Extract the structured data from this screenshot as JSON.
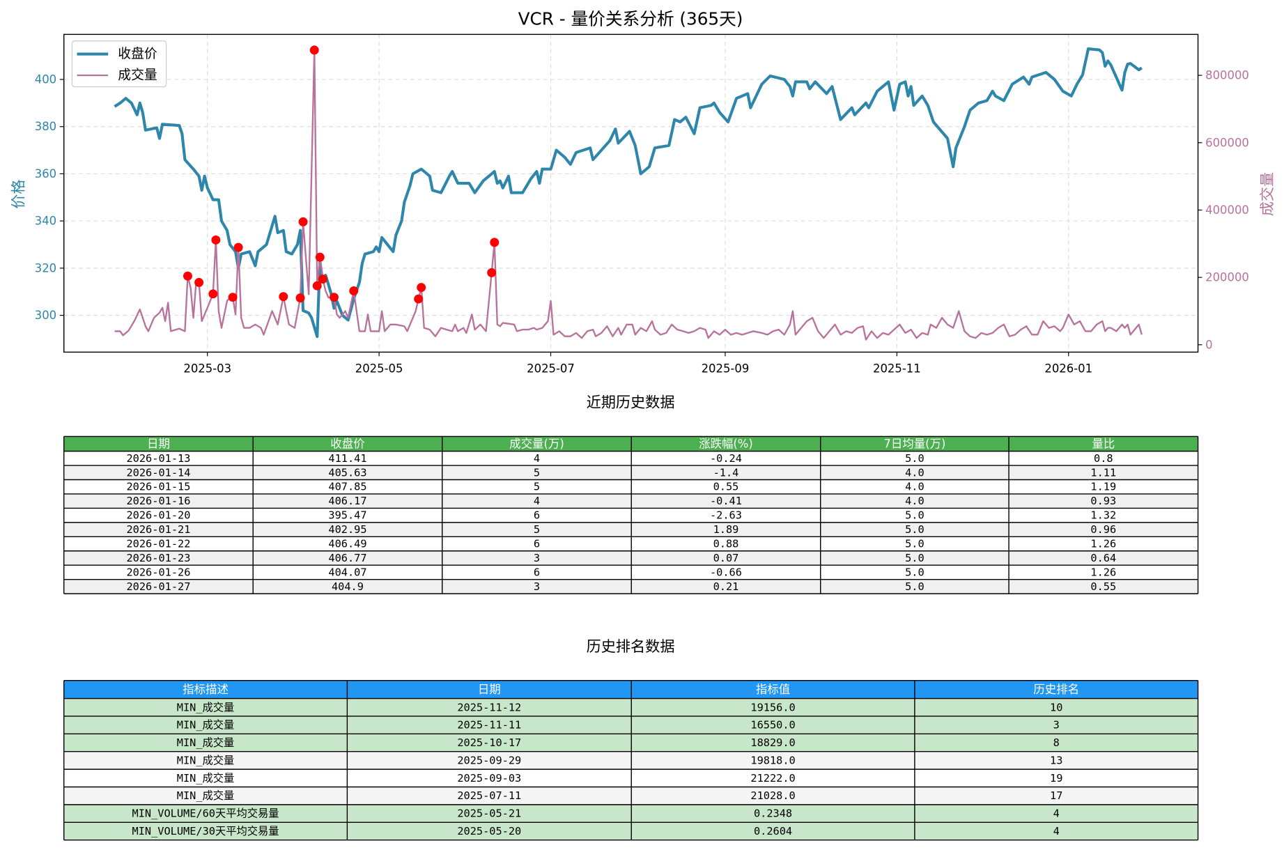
{
  "chart_data": {
    "type": "line",
    "title": "VCR - 量价关系分析 (365天)",
    "ylabel": "价格",
    "y2label": "成交量",
    "xlim": [
      -18,
      385
    ],
    "ylim": [
      284.4,
      419.1
    ],
    "y2lim": [
      -21900,
      921600
    ],
    "xticks": [
      {
        "value": 33,
        "label": "2025-03"
      },
      {
        "value": 94,
        "label": "2025-05"
      },
      {
        "value": 155,
        "label": "2025-07"
      },
      {
        "value": 217,
        "label": "2025-09"
      },
      {
        "value": 278,
        "label": "2025-11"
      },
      {
        "value": 339,
        "label": "2026-01"
      }
    ],
    "yticks": [
      300,
      320,
      340,
      360,
      380,
      400
    ],
    "y2ticks": [
      0,
      200000,
      400000,
      600000,
      800000
    ],
    "grid": true,
    "legend": "upper left",
    "series": [
      {
        "name": "收盘价",
        "color": "#2e86ab",
        "x": [
          0,
          2,
          4,
          6,
          8,
          9,
          10,
          11,
          15,
          16,
          17,
          23,
          24,
          25,
          28,
          30,
          31,
          32,
          33,
          35,
          37,
          38,
          40,
          41,
          43,
          44,
          45,
          48,
          50,
          51,
          54,
          56,
          57,
          58,
          60,
          61,
          63,
          65,
          66,
          67,
          69,
          70,
          72,
          73,
          74,
          75,
          76,
          77,
          78,
          79,
          81,
          83,
          85,
          87,
          88,
          89,
          92,
          93,
          94,
          95,
          97,
          99,
          100,
          102,
          103,
          105,
          106,
          109,
          112,
          113,
          116,
          119,
          120,
          122,
          126,
          128,
          131,
          135,
          136,
          137,
          138,
          140,
          141,
          145,
          148,
          150,
          151,
          152,
          155,
          157,
          160,
          162,
          164,
          169,
          170,
          173,
          176,
          178,
          179,
          183,
          185,
          187,
          190,
          192,
          197,
          199,
          201,
          203,
          206,
          208,
          212,
          213,
          215,
          218,
          221,
          225,
          226,
          230,
          233,
          238,
          240,
          241,
          242,
          246,
          247,
          249,
          253,
          255,
          258,
          262,
          263,
          267,
          268,
          271,
          275,
          277,
          279,
          281,
          282,
          283,
          284,
          287,
          289,
          291,
          296,
          298,
          299,
          302,
          304,
          307,
          310,
          312,
          313,
          316,
          319,
          323,
          325,
          326,
          331,
          334,
          337,
          340,
          342,
          344,
          346,
          350,
          351,
          352,
          353,
          354,
          358,
          359,
          360,
          361,
          364,
          365
        ],
        "values": [
          388.5,
          390,
          392,
          390,
          385,
          390,
          386,
          378.5,
          379.5,
          375,
          381,
          380.5,
          377,
          366,
          362,
          359,
          353,
          359,
          354,
          349,
          349,
          340,
          336,
          330,
          327,
          320,
          326,
          327,
          321,
          327,
          330,
          338,
          342,
          335,
          336,
          327,
          326,
          330,
          336,
          302,
          301,
          299,
          291,
          323,
          314,
          317,
          313,
          309,
          303,
          306,
          300,
          298,
          307,
          314,
          322,
          326,
          327,
          329,
          327,
          333,
          330,
          327,
          334,
          340,
          348,
          355,
          360,
          362,
          359,
          353,
          352,
          359,
          361,
          356,
          356,
          352,
          357,
          361,
          356,
          357,
          354,
          359,
          352,
          352,
          358,
          361,
          356,
          362,
          362,
          370,
          367,
          364,
          369,
          371,
          366,
          370,
          374,
          379,
          373,
          378,
          372,
          360,
          363,
          371,
          372,
          383,
          382,
          384,
          377,
          388,
          389,
          390,
          386,
          382,
          392,
          394,
          388,
          398,
          401.5,
          400,
          397,
          393,
          399,
          399,
          396,
          399,
          394,
          397,
          383,
          388,
          385,
          390,
          388,
          395,
          399,
          387,
          398,
          399,
          393,
          397,
          389,
          393,
          389,
          382,
          375,
          363,
          371,
          380,
          387,
          390,
          391,
          395,
          393,
          391,
          398,
          401,
          398,
          401,
          403,
          400,
          395,
          393,
          398,
          402,
          413,
          412.5,
          411.41,
          405.63,
          407.85,
          406.17,
          395.47,
          402.95,
          406.49,
          406.77,
          404.07,
          404.9
        ]
      },
      {
        "name": "成交量",
        "color": "#b8729b",
        "axis": "y2",
        "x": [
          0,
          2,
          3,
          5,
          7,
          9,
          11,
          12,
          14,
          16,
          17,
          18,
          19,
          20,
          23,
          25,
          26,
          27,
          28,
          29,
          30,
          31,
          33,
          35,
          36,
          37,
          38,
          40,
          41,
          42,
          43,
          44,
          45,
          46,
          48,
          50,
          52,
          53,
          56,
          57,
          58,
          60,
          61,
          62,
          64,
          66,
          67,
          69,
          71,
          72,
          73,
          74,
          75,
          76,
          78,
          79,
          80,
          82,
          83,
          85,
          86,
          87,
          89,
          90,
          91,
          92,
          94,
          95,
          96,
          98,
          100,
          103,
          104,
          105,
          107,
          108,
          109,
          110,
          112,
          114,
          116,
          118,
          120,
          121,
          122,
          124,
          125,
          127,
          128,
          130,
          132,
          134,
          135,
          136,
          137,
          138,
          142,
          143,
          145,
          147,
          149,
          150,
          152,
          154,
          155,
          156,
          158,
          160,
          162,
          164,
          166,
          168,
          170,
          171,
          173,
          175,
          177,
          179,
          180,
          182,
          184,
          185,
          187,
          189,
          191,
          192,
          194,
          196,
          198,
          200,
          202,
          204,
          206,
          208,
          210,
          211,
          213,
          215,
          217,
          219,
          221,
          223,
          225,
          227,
          230,
          232,
          234,
          236,
          238,
          240,
          241,
          242,
          244,
          246,
          248,
          250,
          252,
          254,
          256,
          258,
          260,
          262,
          264,
          266,
          267,
          269,
          271,
          273,
          275,
          277,
          279,
          281,
          283,
          285,
          287,
          289,
          290,
          292,
          294,
          296,
          298,
          300,
          302,
          304,
          306,
          308,
          310,
          312,
          314,
          316,
          318,
          320,
          322,
          324,
          326,
          328,
          330,
          332,
          334,
          336,
          337,
          339,
          341,
          343,
          345,
          347,
          349,
          351,
          352,
          353,
          354,
          356,
          358,
          359,
          360,
          361,
          364,
          365
        ],
        "values": [
          40000,
          40000,
          28000,
          42000,
          70000,
          105000,
          55000,
          40000,
          80000,
          95000,
          110000,
          70000,
          125000,
          40000,
          48000,
          40000,
          204000,
          170000,
          80000,
          185000,
          185000,
          70000,
          110000,
          151000,
          311000,
          100000,
          50000,
          130000,
          140000,
          141000,
          90000,
          289000,
          80000,
          50000,
          50000,
          60000,
          50000,
          30000,
          100000,
          80000,
          60000,
          143000,
          100000,
          60000,
          50000,
          139000,
          365000,
          150000,
          875000,
          175000,
          260000,
          195000,
          160000,
          140000,
          141000,
          90000,
          80000,
          100000,
          80000,
          160000,
          100000,
          40000,
          40000,
          90000,
          40000,
          40000,
          40000,
          100000,
          40000,
          60000,
          60000,
          55000,
          40000,
          60000,
          100000,
          136000,
          170000,
          50000,
          45000,
          25000,
          50000,
          45000,
          40000,
          60000,
          40000,
          50000,
          35000,
          90000,
          45000,
          60000,
          40000,
          214000,
          304000,
          60000,
          55000,
          65000,
          60000,
          40000,
          45000,
          45000,
          50000,
          45000,
          50000,
          70000,
          130000,
          30000,
          40000,
          25000,
          25000,
          35000,
          20000,
          40000,
          45000,
          25000,
          35000,
          55000,
          25000,
          50000,
          30000,
          60000,
          60000,
          30000,
          50000,
          40000,
          70000,
          45000,
          30000,
          35000,
          60000,
          45000,
          40000,
          35000,
          40000,
          50000,
          45000,
          20000,
          40000,
          30000,
          45000,
          30000,
          35000,
          30000,
          35000,
          40000,
          35000,
          30000,
          40000,
          45000,
          30000,
          60000,
          100000,
          30000,
          50000,
          70000,
          80000,
          40000,
          20000,
          40000,
          60000,
          30000,
          40000,
          35000,
          50000,
          55000,
          15000,
          40000,
          20000,
          35000,
          30000,
          45000,
          60000,
          35000,
          45000,
          20000,
          35000,
          30000,
          60000,
          50000,
          80000,
          60000,
          50000,
          100000,
          40000,
          25000,
          20000,
          35000,
          30000,
          35000,
          50000,
          60000,
          25000,
          30000,
          45000,
          55000,
          30000,
          30000,
          70000,
          50000,
          55000,
          40000,
          50000,
          90000,
          60000,
          70000,
          40000,
          40000,
          60000,
          70000,
          40000,
          50000,
          50000,
          40000,
          60000,
          50000,
          60000,
          30000,
          60000,
          30000
        ]
      }
    ],
    "highlight_points": {
      "color": "#ff0000",
      "axis": "y2",
      "x": [
        26,
        30,
        35,
        36,
        42,
        44,
        60,
        66,
        67,
        71,
        72,
        73,
        74,
        78,
        85,
        108,
        109,
        134,
        135
      ],
      "values": [
        204000,
        185000,
        151000,
        311000,
        141000,
        289000,
        143000,
        139000,
        365000,
        875000,
        175000,
        260000,
        195000,
        141000,
        160000,
        136000,
        170000,
        214000,
        304000
      ]
    }
  },
  "recent_table": {
    "title": "近期历史数据",
    "header_color": "#4caf50",
    "columns": [
      "日期",
      "收盘价",
      "成交量(万)",
      "涨跌幅(%)",
      "7日均量(万)",
      "量比"
    ],
    "rows": [
      [
        "2026-01-13",
        "411.41",
        "4",
        "-0.24",
        "5.0",
        "0.8"
      ],
      [
        "2026-01-14",
        "405.63",
        "5",
        "-1.4",
        "4.0",
        "1.11"
      ],
      [
        "2026-01-15",
        "407.85",
        "5",
        "0.55",
        "4.0",
        "1.19"
      ],
      [
        "2026-01-16",
        "406.17",
        "4",
        "-0.41",
        "4.0",
        "0.93"
      ],
      [
        "2026-01-20",
        "395.47",
        "6",
        "-2.63",
        "5.0",
        "1.32"
      ],
      [
        "2026-01-21",
        "402.95",
        "5",
        "1.89",
        "5.0",
        "0.96"
      ],
      [
        "2026-01-22",
        "406.49",
        "6",
        "0.88",
        "5.0",
        "1.26"
      ],
      [
        "2026-01-23",
        "406.77",
        "3",
        "0.07",
        "5.0",
        "0.64"
      ],
      [
        "2026-01-26",
        "404.07",
        "6",
        "-0.66",
        "5.0",
        "1.26"
      ],
      [
        "2026-01-27",
        "404.9",
        "3",
        "0.21",
        "5.0",
        "0.55"
      ]
    ]
  },
  "ranking_table": {
    "title": "历史排名数据",
    "header_color": "#2196f3",
    "columns": [
      "指标描述",
      "日期",
      "指标值",
      "历史排名"
    ],
    "rows": [
      [
        "MIN_成交量",
        "2025-11-12",
        "19156.0",
        "10"
      ],
      [
        "MIN_成交量",
        "2025-11-11",
        "16550.0",
        "3"
      ],
      [
        "MIN_成交量",
        "2025-10-17",
        "18829.0",
        "8"
      ],
      [
        "MIN_成交量",
        "2025-09-29",
        "19818.0",
        "13"
      ],
      [
        "MIN_成交量",
        "2025-09-03",
        "21222.0",
        "19"
      ],
      [
        "MIN_成交量",
        "2025-07-11",
        "21028.0",
        "17"
      ],
      [
        "MIN_VOLUME/60天平均交易量",
        "2025-05-21",
        "0.2348",
        "4"
      ],
      [
        "MIN_VOLUME/30天平均交易量",
        "2025-05-20",
        "0.2604",
        "4"
      ]
    ],
    "row_colors": [
      "#c8e6c9",
      "#c8e6c9",
      "#c8e6c9",
      "#f5f5f5",
      "#ffffff",
      "#f5f5f5",
      "#c8e6c9",
      "#c8e6c9"
    ]
  }
}
